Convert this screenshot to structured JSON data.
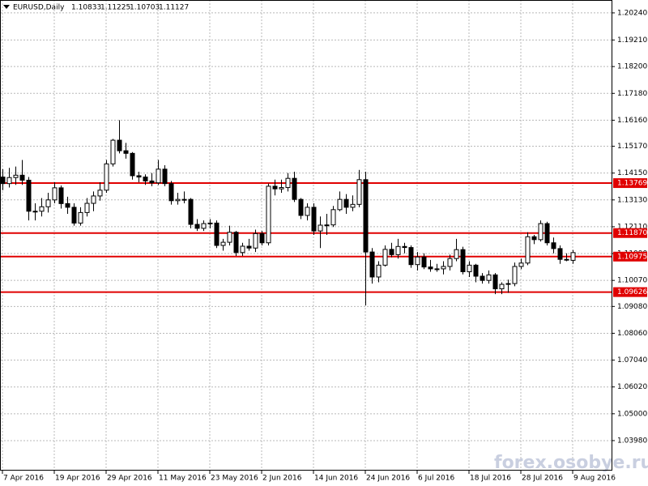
{
  "chart_data": {
    "type": "candlestick",
    "title": "EURUSD,Daily",
    "watermark": "forex.osobye.ru",
    "categories": [
      "7 Apr 2016",
      null,
      null,
      null,
      null,
      null,
      null,
      null,
      "19 Apr 2016",
      null,
      null,
      null,
      null,
      null,
      null,
      null,
      "29 Apr 2016",
      null,
      null,
      null,
      null,
      null,
      null,
      null,
      "11 May 2016",
      null,
      null,
      null,
      null,
      null,
      null,
      null,
      "23 May 2016",
      null,
      null,
      null,
      null,
      null,
      null,
      null,
      "2 Jun 2016",
      null,
      null,
      null,
      null,
      null,
      null,
      null,
      "14 Jun 2016",
      null,
      null,
      null,
      null,
      null,
      null,
      null,
      "24 Jun 2016",
      null,
      null,
      null,
      null,
      null,
      null,
      null,
      "6 Jul 2016",
      null,
      null,
      null,
      null,
      null,
      null,
      null,
      "18 Jul 2016",
      null,
      null,
      null,
      null,
      null,
      null,
      null,
      "28 Jul 2016",
      null,
      null,
      null,
      null,
      null,
      null,
      null,
      "9 Aug 2016"
    ],
    "open": [
      1.14,
      1.1375,
      1.1398,
      1.1407,
      1.1388,
      1.127,
      1.127,
      1.1287,
      1.1313,
      1.1359,
      1.1299,
      1.1285,
      1.1225,
      1.1265,
      1.13,
      1.1328,
      1.135,
      1.145,
      1.154,
      1.15,
      1.149,
      1.1405,
      1.14,
      1.1385,
      1.1378,
      1.143,
      1.1375,
      1.131,
      1.1315,
      1.1315,
      1.122,
      1.1205,
      1.1223,
      1.1225,
      1.114,
      1.1152,
      1.119,
      1.1113,
      1.1137,
      1.113,
      1.1185,
      1.115,
      1.1365,
      1.1355,
      1.136,
      1.1395,
      1.1315,
      1.1254,
      1.1285,
      1.1195,
      1.1217,
      1.1218,
      1.1276,
      1.1315,
      1.1285,
      1.1296,
      1.139,
      1.1115,
      1.102,
      1.1065,
      1.1125,
      1.1105,
      1.1136,
      1.1132,
      1.1067,
      1.1096,
      1.1058,
      1.1051,
      1.1051,
      1.106,
      1.109,
      1.1124,
      1.104,
      1.1065,
      1.1023,
      1.1007,
      1.1028,
      1.0975,
      1.0992,
      1.0995,
      1.106,
      1.1073,
      1.1173,
      1.1162,
      1.1223,
      1.115,
      1.1128,
      1.1087,
      1.10833
    ],
    "high": [
      1.143,
      1.1435,
      1.144,
      1.1465,
      1.14,
      1.13,
      1.132,
      1.134,
      1.138,
      1.1368,
      1.1325,
      1.13,
      1.1285,
      1.132,
      1.1345,
      1.138,
      1.1465,
      1.1545,
      1.1616,
      1.153,
      1.1495,
      1.142,
      1.141,
      1.1415,
      1.1465,
      1.1445,
      1.1385,
      1.134,
      1.1345,
      1.132,
      1.124,
      1.1235,
      1.124,
      1.1235,
      1.1165,
      1.1215,
      1.1195,
      1.115,
      1.1165,
      1.12,
      1.1195,
      1.1375,
      1.139,
      1.139,
      1.1415,
      1.142,
      1.132,
      1.13,
      1.13,
      1.125,
      1.126,
      1.129,
      1.1345,
      1.1335,
      1.133,
      1.1427,
      1.142,
      1.113,
      1.108,
      1.114,
      1.115,
      1.1165,
      1.115,
      1.114,
      1.1115,
      1.111,
      1.1085,
      1.107,
      1.108,
      1.1105,
      1.1165,
      1.1135,
      1.108,
      1.107,
      1.1035,
      1.1045,
      1.1035,
      1.1,
      1.101,
      1.1075,
      1.109,
      1.119,
      1.118,
      1.1235,
      1.123,
      1.117,
      1.114,
      1.111,
      1.11225
    ],
    "low": [
      1.135,
      1.136,
      1.137,
      1.137,
      1.1235,
      1.1235,
      1.125,
      1.1265,
      1.13,
      1.128,
      1.126,
      1.1215,
      1.1215,
      1.125,
      1.127,
      1.131,
      1.134,
      1.144,
      1.149,
      1.147,
      1.139,
      1.138,
      1.137,
      1.1365,
      1.137,
      1.1365,
      1.1295,
      1.1295,
      1.13,
      1.1205,
      1.1195,
      1.1195,
      1.1205,
      1.113,
      1.112,
      1.114,
      1.11,
      1.11,
      1.112,
      1.1115,
      1.114,
      1.114,
      1.133,
      1.134,
      1.1345,
      1.1305,
      1.124,
      1.1235,
      1.118,
      1.113,
      1.118,
      1.121,
      1.127,
      1.126,
      1.127,
      1.1285,
      1.0912,
      1.0995,
      1.1,
      1.106,
      1.1095,
      1.109,
      1.111,
      1.1055,
      1.1045,
      1.105,
      1.104,
      1.104,
      1.103,
      1.1045,
      1.108,
      1.103,
      1.102,
      1.1,
      1.0995,
      1.0995,
      1.0955,
      1.0955,
      1.096,
      1.0985,
      1.105,
      1.1065,
      1.1145,
      1.1155,
      1.114,
      1.111,
      1.107,
      1.108,
      1.10703
    ],
    "close": [
      1.1375,
      1.1398,
      1.1407,
      1.1388,
      1.127,
      1.127,
      1.1287,
      1.1313,
      1.1359,
      1.1299,
      1.1285,
      1.1225,
      1.1265,
      1.13,
      1.1328,
      1.135,
      1.145,
      1.154,
      1.15,
      1.149,
      1.1405,
      1.14,
      1.1385,
      1.1378,
      1.143,
      1.1375,
      1.131,
      1.1315,
      1.1315,
      1.122,
      1.1205,
      1.1223,
      1.1225,
      1.114,
      1.1152,
      1.119,
      1.1113,
      1.1137,
      1.113,
      1.1185,
      1.115,
      1.1365,
      1.1355,
      1.136,
      1.1395,
      1.1315,
      1.1254,
      1.1285,
      1.1195,
      1.1217,
      1.1218,
      1.1276,
      1.1315,
      1.1285,
      1.1296,
      1.139,
      1.1115,
      1.102,
      1.1065,
      1.1125,
      1.1105,
      1.1136,
      1.1132,
      1.1067,
      1.1096,
      1.1058,
      1.1051,
      1.1051,
      1.106,
      1.109,
      1.1124,
      1.104,
      1.1065,
      1.1023,
      1.1007,
      1.1028,
      1.0975,
      1.0992,
      1.0995,
      1.106,
      1.1073,
      1.1173,
      1.1162,
      1.1223,
      1.115,
      1.1128,
      1.1087,
      1.1087,
      1.11127
    ],
    "ylim": [
      1.0287,
      1.2073
    ],
    "yticks": [
      {
        "value": 1.2024,
        "label": "1.20240"
      },
      {
        "value": 1.1921,
        "label": "1.19210"
      },
      {
        "value": 1.182,
        "label": "1.18200"
      },
      {
        "value": 1.1718,
        "label": "1.17180"
      },
      {
        "value": 1.1616,
        "label": "1.16160"
      },
      {
        "value": 1.1517,
        "label": "1.15170"
      },
      {
        "value": 1.1415,
        "label": "1.14150"
      },
      {
        "value": 1.1313,
        "label": "1.13130"
      },
      {
        "value": 1.1211,
        "label": "1.12110"
      },
      {
        "value": 1.1109,
        "label": "1.11090"
      },
      {
        "value": 1.1007,
        "label": "1.10070"
      },
      {
        "value": 1.0908,
        "label": "1.09080"
      },
      {
        "value": 1.0806,
        "label": "1.08060"
      },
      {
        "value": 1.0704,
        "label": "1.07040"
      },
      {
        "value": 1.0602,
        "label": "1.06020"
      },
      {
        "value": 1.05,
        "label": "1.05000"
      },
      {
        "value": 1.0398,
        "label": "1.03980"
      }
    ],
    "levels": [
      1.13769,
      {
        "value": 1.1187,
        "label": "1.11870"
      },
      1.10975,
      1.09626
    ],
    "level_color": "#e00000",
    "grid": true
  }
}
